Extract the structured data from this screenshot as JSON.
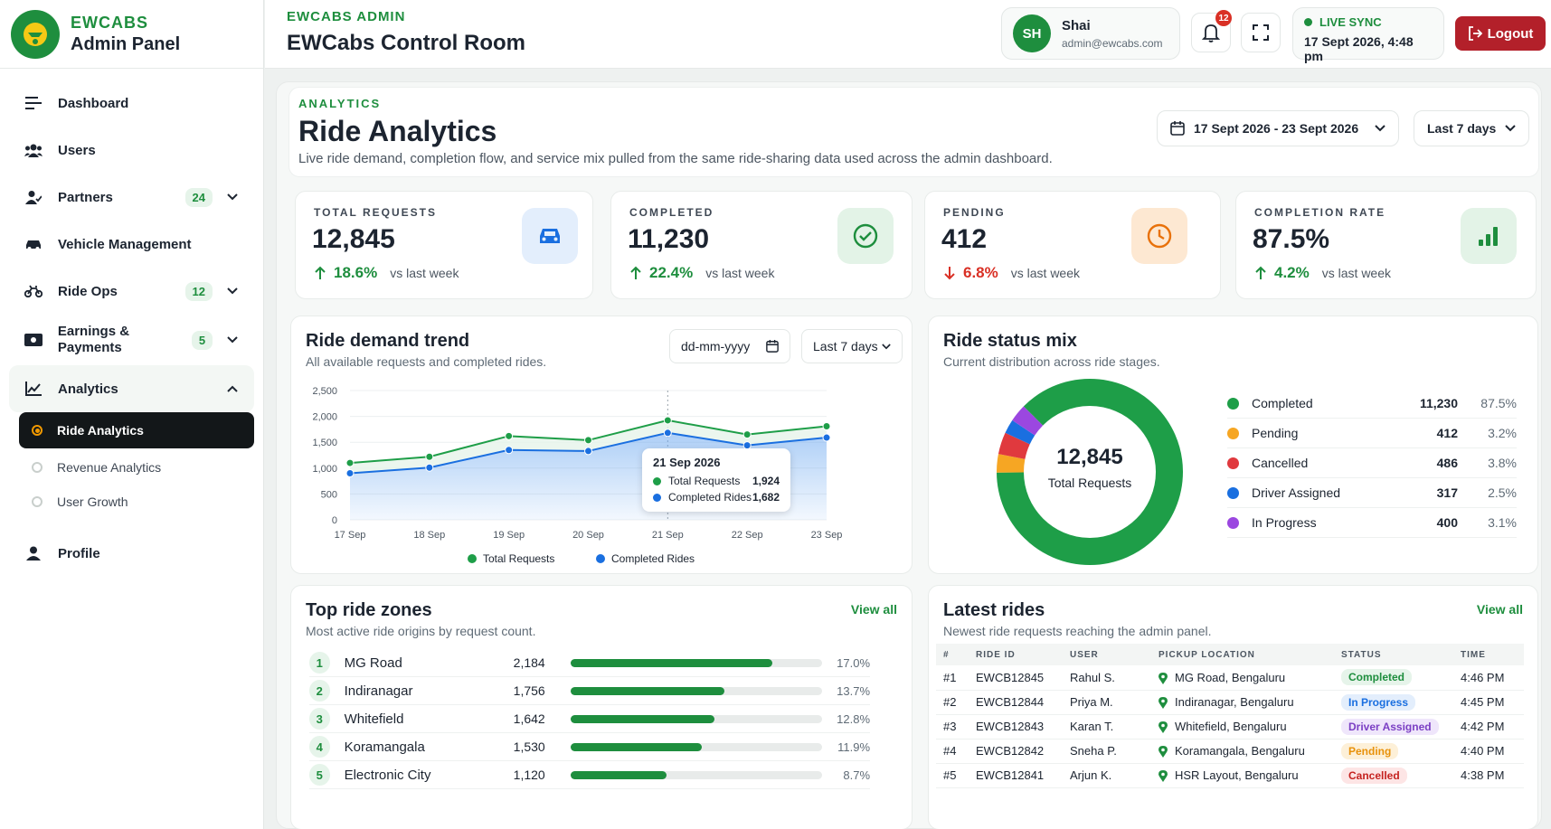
{
  "brand": {
    "top": "EWCABS",
    "bottom": "Admin Panel"
  },
  "nav": {
    "dashboard": "Dashboard",
    "users": "Users",
    "partners": {
      "label": "Partners",
      "badge": "24"
    },
    "vehicle": "Vehicle Management",
    "rideops": {
      "label": "Ride Ops",
      "badge": "12"
    },
    "earnings": {
      "label": "Earnings & Payments",
      "badge": "5"
    },
    "analytics": {
      "label": "Analytics",
      "subs": [
        "Ride Analytics",
        "Revenue Analytics",
        "User Growth"
      ]
    },
    "profile": "Profile"
  },
  "topbar": {
    "eyebrow": "EWCABS ADMIN",
    "title": "EWCabs Control Room",
    "user": {
      "initials": "SH",
      "name": "Shai",
      "email": "admin@ewcabs.com"
    },
    "notif_count": "12",
    "sync_label": "LIVE SYNC",
    "sync_time": "17 Sept 2026, 4:48 pm",
    "logout": "Logout"
  },
  "header": {
    "eyebrow": "ANALYTICS",
    "title": "Ride Analytics",
    "desc": "Live ride demand, completion flow, and service mix pulled from the same ride-sharing data used across the admin dashboard.",
    "date_range": "17 Sept 2026 - 23 Sept 2026",
    "range": "Last 7 days"
  },
  "kpis": [
    {
      "label": "TOTAL REQUESTS",
      "value": "12,845",
      "delta": "18.6%",
      "vs": "vs last week"
    },
    {
      "label": "COMPLETED",
      "value": "11,230",
      "delta": "22.4%",
      "vs": "vs last week"
    },
    {
      "label": "PENDING",
      "value": "412",
      "delta": "6.8%",
      "vs": "vs last week"
    },
    {
      "label": "COMPLETION RATE",
      "value": "87.5%",
      "delta": "4.2%",
      "vs": "vs last week"
    }
  ],
  "trend": {
    "title": "Ride demand trend",
    "subtitle": "All available requests and completed rides.",
    "date_placeholder": "dd-mm-yyyy",
    "range": "Last 7 days",
    "tooltip": {
      "date": "21 Sep 2026",
      "total_label": "Total Requests",
      "total_value": "1,924",
      "completed_label": "Completed Rides",
      "completed_value": "1,682"
    }
  },
  "chart_data": {
    "type": "line",
    "x": [
      "17 Sep",
      "18 Sep",
      "19 Sep",
      "20 Sep",
      "21 Sep",
      "22 Sep",
      "23 Sep"
    ],
    "series": [
      {
        "name": "Total Requests",
        "values": [
          1100,
          1220,
          1620,
          1540,
          1924,
          1650,
          1810
        ]
      },
      {
        "name": "Completed Rides",
        "values": [
          900,
          1010,
          1350,
          1330,
          1682,
          1440,
          1590
        ]
      }
    ],
    "ylim": [
      0,
      2500
    ],
    "yticks": [
      "0",
      "500",
      "1,000",
      "1,500",
      "2,000",
      "2,500"
    ],
    "grid": true,
    "legend": "bottom"
  },
  "status_mix": {
    "title": "Ride status mix",
    "subtitle": "Current distribution across ride stages.",
    "center_value": "12,845",
    "center_label": "Total Requests",
    "items": [
      {
        "name": "Completed",
        "value": "11,230",
        "pct": "87.5%",
        "color": "#1e9e48"
      },
      {
        "name": "Pending",
        "value": "412",
        "pct": "3.2%",
        "color": "#f6a623"
      },
      {
        "name": "Cancelled",
        "value": "486",
        "pct": "3.8%",
        "color": "#e0393e"
      },
      {
        "name": "Driver Assigned",
        "value": "317",
        "pct": "2.5%",
        "color": "#1a6fe0"
      },
      {
        "name": "In Progress",
        "value": "400",
        "pct": "3.1%",
        "color": "#9b47e0"
      }
    ]
  },
  "zones": {
    "title": "Top ride zones",
    "subtitle": "Most active ride origins by request count.",
    "view_all": "View all",
    "items": [
      {
        "rank": "1",
        "name": "MG Road",
        "count": "2,184",
        "pct": "17.0%",
        "share": 0.8
      },
      {
        "rank": "2",
        "name": "Indiranagar",
        "count": "1,756",
        "pct": "13.7%",
        "share": 0.61
      },
      {
        "rank": "3",
        "name": "Whitefield",
        "count": "1,642",
        "pct": "12.8%",
        "share": 0.57
      },
      {
        "rank": "4",
        "name": "Koramangala",
        "count": "1,530",
        "pct": "11.9%",
        "share": 0.52
      },
      {
        "rank": "5",
        "name": "Electronic City",
        "count": "1,120",
        "pct": "8.7%",
        "share": 0.38
      }
    ]
  },
  "latest": {
    "title": "Latest rides",
    "subtitle": "Newest ride requests reaching the admin panel.",
    "view_all": "View all",
    "columns": [
      "#",
      "RIDE ID",
      "USER",
      "PICKUP LOCATION",
      "STATUS",
      "TIME"
    ],
    "rows": [
      {
        "n": "#1",
        "id": "EWCB12845",
        "user": "Rahul S.",
        "loc": "MG Road, Bengaluru",
        "status": "Completed",
        "time": "4:46 PM"
      },
      {
        "n": "#2",
        "id": "EWCB12844",
        "user": "Priya M.",
        "loc": "Indiranagar, Bengaluru",
        "status": "In Progress",
        "time": "4:45 PM"
      },
      {
        "n": "#3",
        "id": "EWCB12843",
        "user": "Karan T.",
        "loc": "Whitefield, Bengaluru",
        "status": "Driver Assigned",
        "time": "4:42 PM"
      },
      {
        "n": "#4",
        "id": "EWCB12842",
        "user": "Sneha P.",
        "loc": "Koramangala, Bengaluru",
        "status": "Pending",
        "time": "4:40 PM"
      },
      {
        "n": "#5",
        "id": "EWCB12841",
        "user": "Arjun K.",
        "loc": "HSR Layout, Bengaluru",
        "status": "Cancelled",
        "time": "4:38 PM"
      }
    ]
  }
}
